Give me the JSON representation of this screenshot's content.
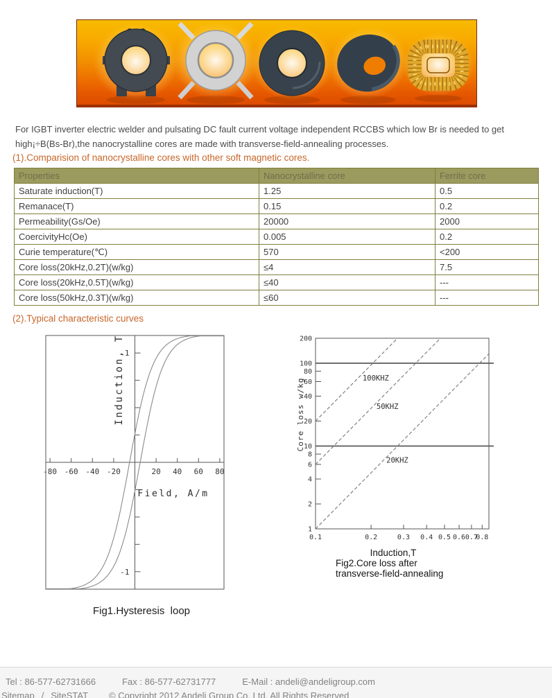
{
  "banner": {
    "alt": "magnetic cores product banner"
  },
  "intro": {
    "line1": "For IGBT inverter electric welder and pulsating DC fault current voltage independent RCCBS which low Br is needed to get",
    "line2": "high¡÷B(Bs-Br),the nanocrystalline cores are made with transverse-field-annealing processes."
  },
  "sections": {
    "s1": "(1).Comparision of nanocrystalline cores with other soft magnetic cores.",
    "s2": "(2).Typical characteristic curves"
  },
  "table": {
    "headers": [
      "Properties",
      "Nanocrystalline core",
      "Ferrite core"
    ],
    "rows": [
      [
        "Saturate induction(T)",
        "1.25",
        "0.5"
      ],
      [
        "Remanace(T)",
        "0.15",
        "0.2"
      ],
      [
        "Permeability(Gs/Oe)",
        "20000",
        "2000"
      ],
      [
        "CoercivityHc(Oe)",
        "0.005",
        "0.2"
      ],
      [
        "Curie temperature(℃)",
        "570",
        "<200"
      ],
      [
        "Core loss(20kHz,0.2T)(w/kg)",
        "≤4",
        "7.5"
      ],
      [
        "Core loss(20kHz,0.5T)(w/kg)",
        "≤40",
        "---"
      ],
      [
        "Core loss(50kHz,0.3T)(w/kg)",
        "≤60",
        "---"
      ]
    ]
  },
  "chart_data": [
    {
      "type": "line",
      "name": "hysteresis-loop",
      "title": "Fig1.Hysteresis  loop",
      "xlabel": "Field, A/m",
      "ylabel": "Induction, T",
      "x_ticks": [
        -80,
        -60,
        -40,
        -20,
        20,
        40,
        60,
        80
      ],
      "y_labeled_ticks": [
        1,
        -1
      ],
      "y_minor_ticks": [
        0.75,
        0.5,
        0.25,
        -0.25,
        -0.5,
        -0.75
      ],
      "xlim": [
        -84,
        84
      ],
      "ylim": [
        -1.16,
        1.16
      ],
      "grid": false,
      "model": {
        "b_sat": 1.17,
        "coercivity": 5,
        "softness": 22
      }
    },
    {
      "type": "line",
      "name": "core-loss-vs-induction",
      "xscale": "log",
      "yscale": "log",
      "xlabel": "Induction,T",
      "ylabel": "Core loss  w/kg",
      "caption1": "Fig2.Core loss after",
      "caption2": "transverse-field-annealing",
      "x_ticks": [
        0.1,
        0.2,
        0.3,
        0.4,
        0.5,
        0.6,
        0.7,
        0.8
      ],
      "y_ticks": [
        1,
        2,
        4,
        6,
        8,
        10,
        20,
        40,
        60,
        80,
        100,
        200
      ],
      "xlim": [
        0.1,
        0.87
      ],
      "ylim": [
        1,
        200
      ],
      "hlines": [
        10,
        100
      ],
      "grid": false,
      "series": [
        {
          "name": "100KHZ",
          "style": "dashed",
          "points": [
            [
              0.1,
              20
            ],
            [
              0.278,
              200
            ]
          ]
        },
        {
          "name": "50KHZ",
          "style": "dashed",
          "points": [
            [
              0.1,
              6
            ],
            [
              0.475,
              200
            ]
          ]
        },
        {
          "name": "20KHZ",
          "style": "dashed",
          "points": [
            [
              0.1,
              1
            ],
            [
              0.87,
              130
            ]
          ]
        }
      ],
      "labels": [
        {
          "text": "100KHZ",
          "x": 0.18,
          "y": 62
        },
        {
          "text": "50KHZ",
          "x": 0.214,
          "y": 28
        },
        {
          "text": "20KHZ",
          "x": 0.242,
          "y": 6.3
        }
      ]
    }
  ],
  "footer": {
    "tel": "Tel : 86-577-62731666",
    "fax": "Fax : 86-577-62731777",
    "email": "E-Mail : andeli@andeligroup.com",
    "sitemap": "Sitemap",
    "sep": "/",
    "sitestat": "SiteSTAT",
    "copyright": "© Copyright 2012 Andeli Group Co. Ltd. All Rights Reserved"
  },
  "colors": {
    "accent_orange": "#c8662a",
    "table_header_bg": "#9b9b5f",
    "table_border": "#7f7f3d",
    "banner_top": "#f8bb01",
    "banner_bottom": "#dd4c00"
  }
}
